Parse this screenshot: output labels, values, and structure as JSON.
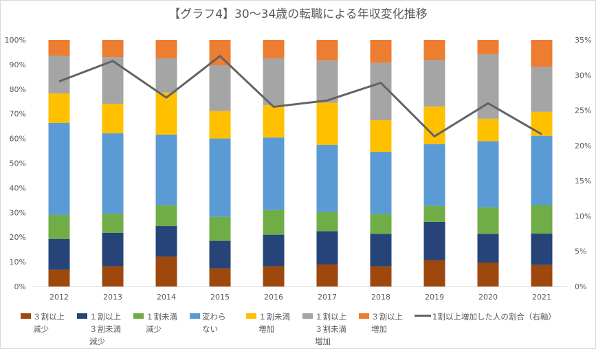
{
  "chart_data": {
    "type": "bar",
    "stacked": "100%",
    "title": "【グラフ4】30～34歳の転職による年収変化推移",
    "categories": [
      "2012",
      "2013",
      "2014",
      "2015",
      "2016",
      "2017",
      "2018",
      "2019",
      "2020",
      "2021"
    ],
    "y_left": {
      "ylim": [
        0,
        100
      ],
      "ticks": [
        "0%",
        "10%",
        "20%",
        "30%",
        "40%",
        "50%",
        "60%",
        "70%",
        "80%",
        "90%",
        "100%"
      ]
    },
    "y_right": {
      "ylim": [
        0,
        35
      ],
      "ticks": [
        "0%",
        "5%",
        "10%",
        "15%",
        "20%",
        "25%",
        "30%",
        "35%"
      ]
    },
    "grid": false,
    "legend_position": "bottom",
    "series": [
      {
        "name": "３割以上\n減少",
        "color": "#9e480e",
        "values": [
          6.8,
          8.2,
          12.1,
          7.3,
          8.2,
          8.9,
          8.2,
          10.6,
          9.6,
          8.7
        ]
      },
      {
        "name": "１割以上\n３割未満\n減少",
        "color": "#264478",
        "values": [
          12.5,
          13.6,
          12.4,
          11.2,
          12.8,
          13.5,
          13.1,
          15.6,
          11.7,
          12.8
        ]
      },
      {
        "name": "１割未満\n減少",
        "color": "#70ad47",
        "values": [
          9.7,
          7.7,
          8.4,
          9.7,
          10.0,
          7.8,
          8.2,
          6.5,
          10.8,
          11.5
        ]
      },
      {
        "name": "変わら\nない",
        "color": "#5b9bd5",
        "values": [
          37.3,
          32.6,
          28.7,
          31.8,
          29.4,
          27.2,
          25.1,
          25.0,
          26.8,
          28.1
        ]
      },
      {
        "name": "１割未満\n増加",
        "color": "#ffc000",
        "values": [
          12.0,
          12.0,
          17.0,
          11.1,
          13.1,
          17.1,
          12.8,
          15.3,
          9.1,
          9.7
        ]
      },
      {
        "name": "１割以上\n３割未満\n増加",
        "color": "#a5a5a5",
        "values": [
          15.3,
          18.9,
          13.9,
          18.6,
          19.0,
          17.2,
          23.4,
          18.9,
          26.2,
          18.3
        ]
      },
      {
        "name": "３割以上\n増加",
        "color": "#ed7d31",
        "values": [
          6.4,
          7.0,
          7.5,
          10.3,
          7.5,
          8.3,
          9.2,
          8.1,
          5.8,
          10.9
        ]
      }
    ],
    "line_series": {
      "name": "1割以上増加した人の割合（右軸）",
      "color": "#636363",
      "axis": "right",
      "values": [
        29.1,
        32.0,
        26.8,
        32.7,
        25.5,
        26.4,
        28.9,
        21.3,
        26.0,
        21.6
      ]
    }
  }
}
